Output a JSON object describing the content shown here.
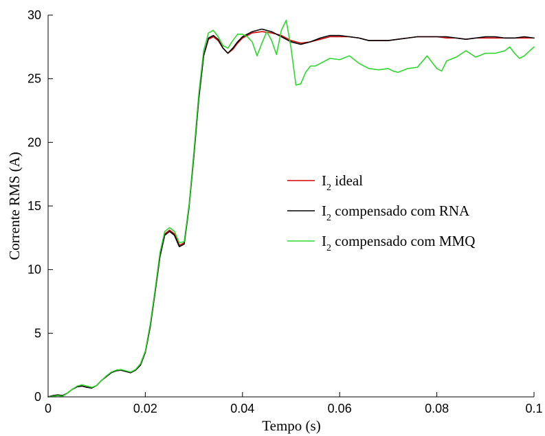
{
  "chart_data": {
    "type": "line",
    "xlabel": "Tempo (s)",
    "ylabel": "Corrente RMS (A)",
    "xlim": [
      0,
      0.1
    ],
    "ylim": [
      0,
      30
    ],
    "x_ticks": [
      "0",
      "0.02",
      "0.04",
      "0.06",
      "0.08",
      "0.1"
    ],
    "y_ticks": [
      "0",
      "5",
      "10",
      "15",
      "20",
      "25",
      "30"
    ],
    "grid": false,
    "legend_position": "center-right",
    "series": [
      {
        "name": "I2 ideal",
        "label_main": "I",
        "label_sub": "2",
        "label_rest": " ideal",
        "color": "#d40000",
        "x": [
          0,
          0.001,
          0.002,
          0.003,
          0.004,
          0.005,
          0.006,
          0.007,
          0.008,
          0.009,
          0.01,
          0.011,
          0.012,
          0.013,
          0.014,
          0.015,
          0.016,
          0.017,
          0.018,
          0.019,
          0.02,
          0.021,
          0.022,
          0.023,
          0.024,
          0.025,
          0.026,
          0.027,
          0.028,
          0.029,
          0.03,
          0.031,
          0.032,
          0.033,
          0.034,
          0.035,
          0.036,
          0.037,
          0.038,
          0.039,
          0.04,
          0.042,
          0.044,
          0.046,
          0.048,
          0.05,
          0.052,
          0.054,
          0.056,
          0.058,
          0.06,
          0.062,
          0.064,
          0.066,
          0.068,
          0.07,
          0.072,
          0.074,
          0.076,
          0.078,
          0.08,
          0.082,
          0.084,
          0.086,
          0.088,
          0.09,
          0.092,
          0.094,
          0.096,
          0.098,
          0.1
        ],
        "y": [
          0.0,
          0.1,
          0.15,
          0.1,
          0.3,
          0.6,
          0.8,
          0.85,
          0.75,
          0.7,
          0.9,
          1.3,
          1.6,
          1.9,
          2.05,
          2.1,
          2.0,
          1.9,
          2.1,
          2.5,
          3.5,
          5.5,
          8.2,
          11.0,
          12.8,
          13.1,
          12.8,
          11.9,
          12.1,
          15.0,
          19.0,
          23.5,
          26.8,
          28.1,
          28.3,
          28.0,
          27.4,
          27.0,
          27.3,
          27.8,
          28.2,
          28.6,
          28.7,
          28.6,
          28.4,
          28.0,
          27.8,
          27.9,
          28.1,
          28.3,
          28.3,
          28.3,
          28.2,
          28.0,
          28.0,
          28.0,
          28.1,
          28.2,
          28.3,
          28.3,
          28.3,
          28.2,
          28.2,
          28.1,
          28.2,
          28.2,
          28.2,
          28.2,
          28.2,
          28.2,
          28.2
        ]
      },
      {
        "name": "I2 compensado com RNA",
        "label_main": "I",
        "label_sub": "2",
        "label_rest": " compensado com RNA",
        "color": "#000000",
        "x": [
          0,
          0.001,
          0.002,
          0.003,
          0.004,
          0.005,
          0.006,
          0.007,
          0.008,
          0.009,
          0.01,
          0.011,
          0.012,
          0.013,
          0.014,
          0.015,
          0.016,
          0.017,
          0.018,
          0.019,
          0.02,
          0.021,
          0.022,
          0.023,
          0.024,
          0.025,
          0.026,
          0.027,
          0.028,
          0.029,
          0.03,
          0.031,
          0.032,
          0.033,
          0.034,
          0.035,
          0.036,
          0.037,
          0.038,
          0.039,
          0.04,
          0.042,
          0.044,
          0.046,
          0.048,
          0.05,
          0.052,
          0.054,
          0.056,
          0.058,
          0.06,
          0.062,
          0.064,
          0.066,
          0.068,
          0.07,
          0.072,
          0.074,
          0.076,
          0.078,
          0.08,
          0.082,
          0.084,
          0.086,
          0.088,
          0.09,
          0.092,
          0.094,
          0.096,
          0.098,
          0.1
        ],
        "y": [
          0.0,
          0.1,
          0.15,
          0.1,
          0.3,
          0.6,
          0.8,
          0.85,
          0.75,
          0.7,
          0.9,
          1.3,
          1.6,
          1.9,
          2.05,
          2.1,
          2.0,
          1.9,
          2.1,
          2.5,
          3.5,
          5.5,
          8.2,
          11.0,
          12.7,
          13.0,
          12.7,
          11.8,
          12.0,
          14.9,
          19.0,
          23.4,
          26.8,
          28.2,
          28.4,
          28.1,
          27.4,
          27.0,
          27.4,
          27.9,
          28.3,
          28.7,
          28.9,
          28.7,
          28.3,
          27.9,
          27.7,
          27.9,
          28.2,
          28.4,
          28.4,
          28.3,
          28.2,
          28.0,
          28.0,
          28.0,
          28.1,
          28.2,
          28.3,
          28.3,
          28.3,
          28.3,
          28.2,
          28.1,
          28.2,
          28.3,
          28.3,
          28.2,
          28.2,
          28.3,
          28.2
        ]
      },
      {
        "name": "I2 compensado com MMQ",
        "label_main": "I",
        "label_sub": "2",
        "label_rest": " compensado com MMQ",
        "color": "#2bd92b",
        "x": [
          0,
          0.001,
          0.002,
          0.003,
          0.004,
          0.005,
          0.006,
          0.007,
          0.008,
          0.009,
          0.01,
          0.011,
          0.012,
          0.013,
          0.014,
          0.015,
          0.016,
          0.017,
          0.018,
          0.019,
          0.02,
          0.021,
          0.022,
          0.023,
          0.024,
          0.025,
          0.026,
          0.027,
          0.028,
          0.029,
          0.03,
          0.031,
          0.032,
          0.033,
          0.034,
          0.035,
          0.036,
          0.037,
          0.038,
          0.039,
          0.04,
          0.041,
          0.042,
          0.043,
          0.044,
          0.045,
          0.046,
          0.047,
          0.048,
          0.049,
          0.05,
          0.051,
          0.052,
          0.053,
          0.054,
          0.055,
          0.056,
          0.057,
          0.058,
          0.06,
          0.062,
          0.064,
          0.066,
          0.068,
          0.07,
          0.071,
          0.072,
          0.074,
          0.076,
          0.078,
          0.08,
          0.081,
          0.082,
          0.084,
          0.086,
          0.088,
          0.09,
          0.092,
          0.094,
          0.095,
          0.096,
          0.097,
          0.098,
          0.1
        ],
        "y": [
          0.0,
          0.05,
          0.1,
          0.05,
          0.3,
          0.6,
          0.85,
          0.95,
          0.85,
          0.75,
          0.9,
          1.3,
          1.65,
          1.95,
          2.1,
          2.15,
          2.05,
          1.95,
          2.15,
          2.6,
          3.6,
          5.7,
          8.4,
          11.3,
          13.0,
          13.3,
          13.0,
          12.1,
          12.2,
          15.1,
          19.3,
          23.8,
          27.2,
          28.6,
          28.8,
          28.3,
          27.6,
          27.4,
          28.0,
          28.5,
          28.5,
          28.3,
          27.9,
          26.8,
          27.8,
          28.7,
          28.0,
          26.9,
          28.8,
          29.6,
          27.4,
          24.5,
          24.6,
          25.5,
          26.0,
          26.0,
          26.2,
          26.4,
          26.6,
          26.5,
          26.8,
          26.2,
          25.8,
          25.7,
          25.8,
          25.6,
          25.5,
          25.8,
          25.9,
          26.8,
          25.8,
          25.6,
          26.4,
          26.7,
          27.2,
          26.7,
          27.0,
          27.0,
          27.2,
          27.5,
          27.0,
          26.6,
          26.8,
          27.5
        ]
      }
    ]
  }
}
